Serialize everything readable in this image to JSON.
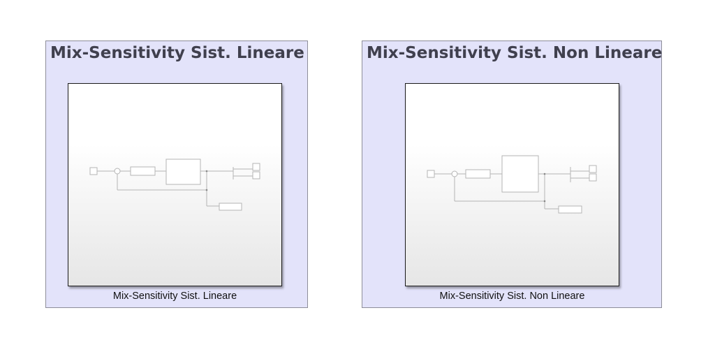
{
  "areas": [
    {
      "title": "Mix-Sensitivity Sist. Lineare",
      "block_label": "Mix-Sensitivity Sist. Lineare"
    },
    {
      "title": "Mix-Sensitivity Sist. Non Lineare",
      "block_label": "Mix-Sensitivity Sist. Non Lineare"
    }
  ],
  "colors": {
    "area_fill": "#e3e3fa",
    "area_border": "#8d8d99",
    "title_text": "#40404e",
    "preview_lines": "#b4b4b4"
  }
}
